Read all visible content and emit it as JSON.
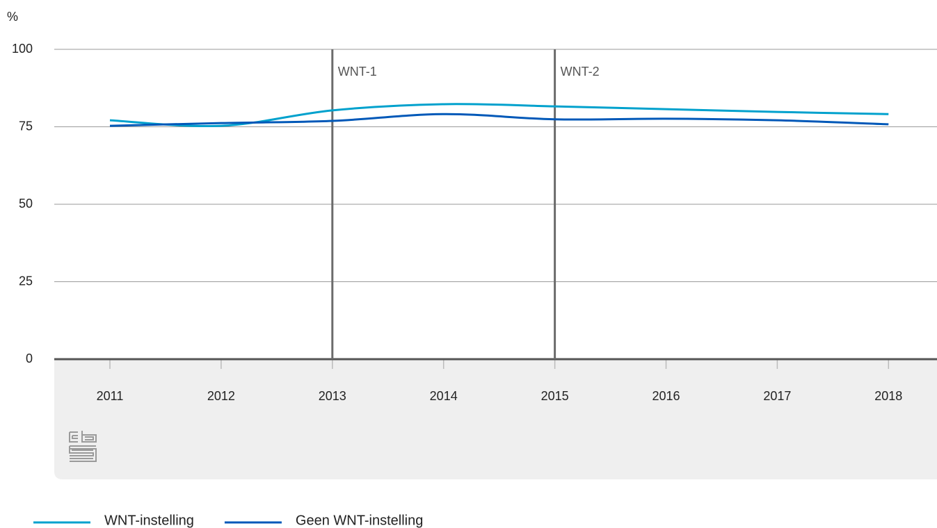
{
  "chart_data": {
    "type": "line",
    "y_label": "%",
    "categories": [
      "2011",
      "2012",
      "2013",
      "2014",
      "2015",
      "2016",
      "2017",
      "2018"
    ],
    "series": [
      {
        "name": "WNT-instelling",
        "color": "#00a1cd",
        "values": [
          77.1,
          75.3,
          80.3,
          82.3,
          81.6,
          80.7,
          79.8,
          79.1
        ]
      },
      {
        "name": "Geen WNT-instelling",
        "color": "#0058b8",
        "values": [
          75.3,
          76.2,
          76.9,
          79.1,
          77.4,
          77.6,
          77.1,
          75.8
        ]
      }
    ],
    "ylim": [
      0,
      100
    ],
    "yticks": [
      0,
      25,
      50,
      75,
      100
    ],
    "grid": true,
    "annotations": [
      {
        "x": "2013",
        "label": "WNT-1"
      },
      {
        "x": "2015",
        "label": "WNT-2"
      }
    ]
  }
}
